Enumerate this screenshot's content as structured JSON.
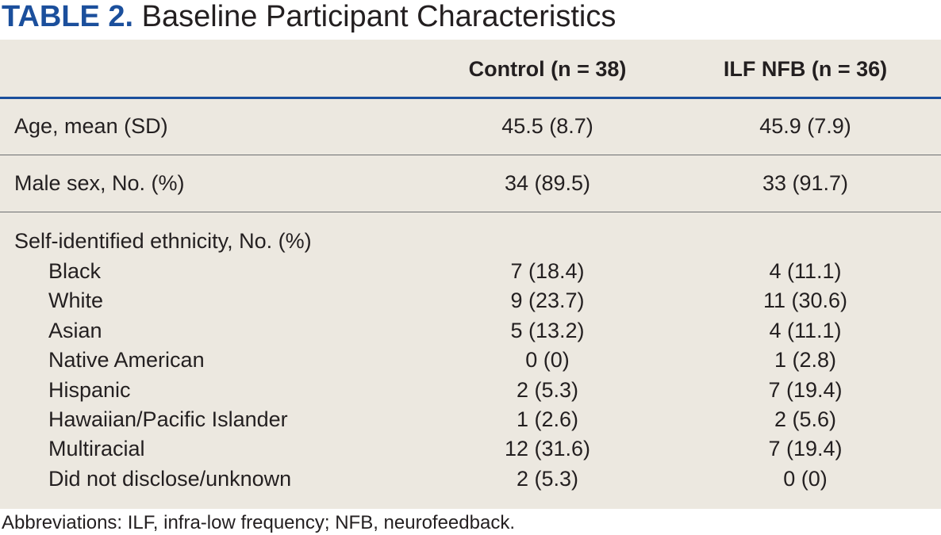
{
  "title": {
    "label": "TABLE 2.",
    "text": "Baseline Participant Characteristics"
  },
  "table": {
    "columns": [
      "Control (n = 38)",
      "ILF NFB (n = 36)"
    ],
    "rows": [
      [
        "Age, mean (SD)",
        "45.5 (8.7)",
        "45.9 (7.9)"
      ],
      [
        "Male sex, No. (%)",
        "34 (89.5)",
        "33 (91.7)"
      ]
    ],
    "group": {
      "label": "Self-identified ethnicity, No. (%)",
      "rows": [
        [
          "Black",
          "7 (18.4)",
          "4 (11.1)"
        ],
        [
          "White",
          "9 (23.7)",
          "11 (30.6)"
        ],
        [
          "Asian",
          "5 (13.2)",
          "4 (11.1)"
        ],
        [
          "Native American",
          "0 (0)",
          "1 (2.8)"
        ],
        [
          "Hispanic",
          "2 (5.3)",
          "7 (19.4)"
        ],
        [
          "Hawaiian/Pacific Islander",
          "1 (2.6)",
          "2 (5.6)"
        ],
        [
          "Multiracial",
          "12 (31.6)",
          "7 (19.4)"
        ],
        [
          "Did not disclose/unknown",
          "2 (5.3)",
          "0 (0)"
        ]
      ]
    }
  },
  "footnote": "Abbreviations: ILF, infra-low frequency; NFB, neurofeedback."
}
